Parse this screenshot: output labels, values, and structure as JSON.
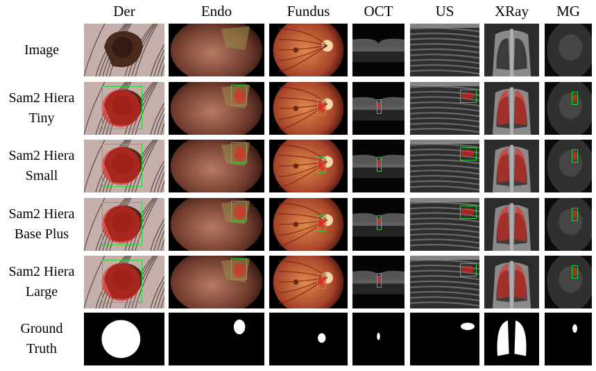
{
  "columns": [
    "Der",
    "Endo",
    "Fundus",
    "OCT",
    "US",
    "XRay",
    "MG"
  ],
  "rows": [
    {
      "line1": "Image",
      "line2": ""
    },
    {
      "line1": "Sam2 Hiera",
      "line2": "Tiny"
    },
    {
      "line1": "Sam2 Hiera",
      "line2": "Small"
    },
    {
      "line1": "Sam2 Hiera",
      "line2": "Base Plus"
    },
    {
      "line1": "Sam2 Hiera",
      "line2": "Large"
    },
    {
      "line1": "Ground",
      "line2": "Truth"
    }
  ],
  "colors": {
    "bbox": "#2fd13a",
    "mask_overlay": "#e8261f",
    "ground_truth_mask": "#ffffff",
    "ground_truth_background": "#000000"
  }
}
